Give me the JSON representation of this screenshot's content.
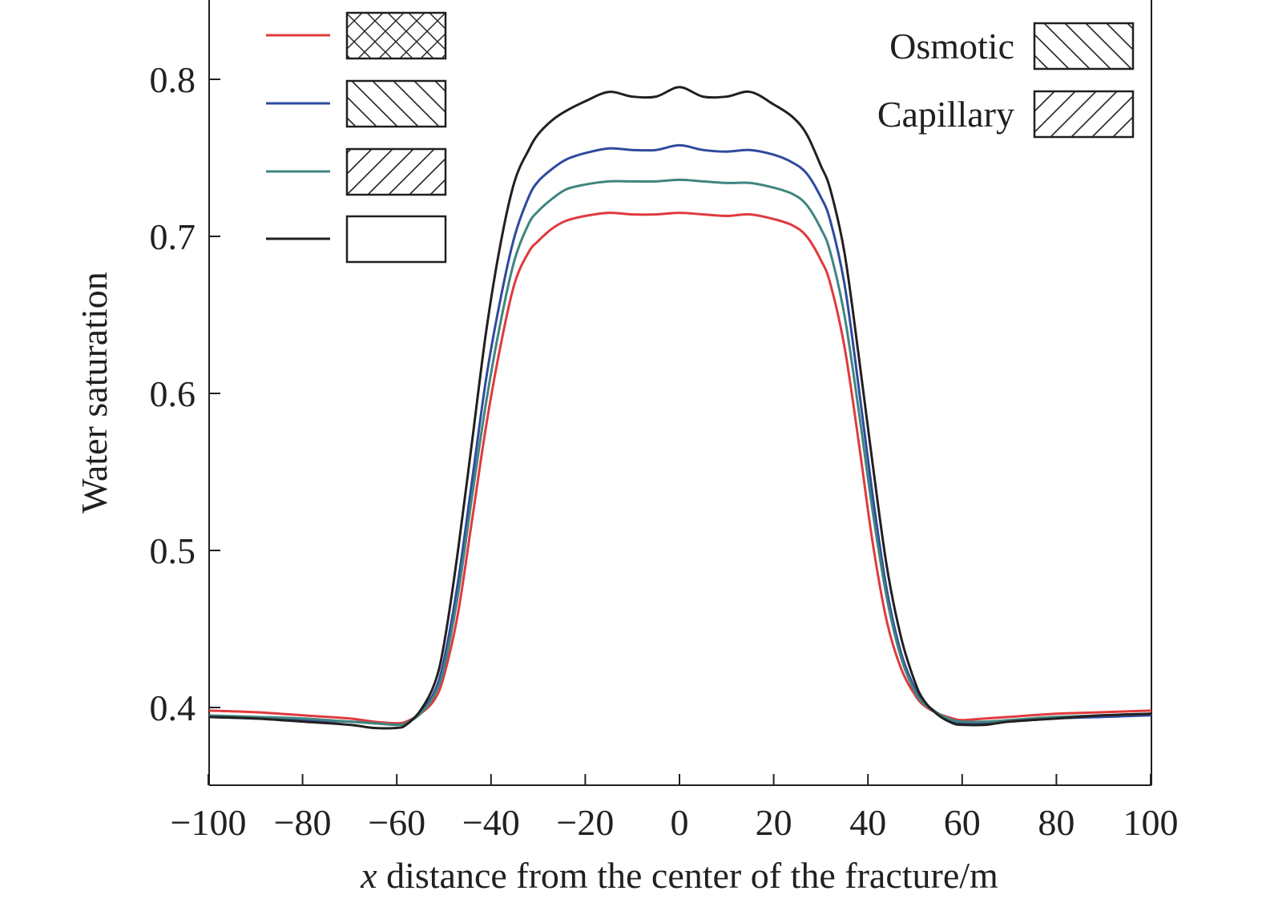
{
  "chart_data": {
    "type": "line",
    "title": "",
    "xlabel_var": "x",
    "xlabel": " distance from the center of the fracture/m",
    "ylabel": "Water saturation",
    "xlim": [
      -100,
      100
    ],
    "ylim": [
      0.35,
      0.85
    ],
    "xticks": [
      -100,
      -80,
      -60,
      -40,
      -20,
      0,
      20,
      40,
      60,
      80,
      100
    ],
    "yticks": [
      0.4,
      0.5,
      0.6,
      0.7,
      0.8
    ],
    "xtick_labels": [
      "−100",
      "−80",
      "−60",
      "−40",
      "−20",
      "0",
      "20",
      "40",
      "60",
      "80",
      "100"
    ],
    "ytick_labels": [
      "0.4",
      "0.5",
      "0.6",
      "0.7",
      "0.8"
    ],
    "grid": false,
    "legend": {
      "placement": "top-left",
      "entries": [
        {
          "color": "#e03a3e",
          "pattern": "crosshatch"
        },
        {
          "color": "#2e4a9e",
          "pattern": "back-diagonal"
        },
        {
          "color": "#3f8580",
          "pattern": "forward-diagonal"
        },
        {
          "color": "#231f20",
          "pattern": "none"
        }
      ]
    },
    "pattern_key": {
      "placement": "top-right",
      "entries": [
        {
          "label": "Osmotic",
          "pattern": "back-diagonal"
        },
        {
          "label": "Capillary",
          "pattern": "forward-diagonal"
        }
      ]
    },
    "x": [
      -100,
      -90,
      -80,
      -70,
      -65,
      -60,
      -58,
      -55,
      -52,
      -50,
      -47,
      -44,
      -41,
      -38,
      -35,
      -32,
      -30,
      -27,
      -24,
      -20,
      -15,
      -10,
      -5,
      0,
      5,
      10,
      15,
      20,
      24,
      27,
      30,
      32,
      35,
      38,
      41,
      44,
      47,
      50,
      52,
      55,
      58,
      60,
      65,
      70,
      80,
      90,
      100
    ],
    "series": [
      {
        "color": "#e03a3e",
        "values": [
          0.398,
          0.397,
          0.395,
          0.393,
          0.391,
          0.39,
          0.391,
          0.396,
          0.405,
          0.42,
          0.46,
          0.52,
          0.58,
          0.63,
          0.67,
          0.69,
          0.697,
          0.705,
          0.71,
          0.713,
          0.715,
          0.714,
          0.714,
          0.715,
          0.714,
          0.713,
          0.714,
          0.711,
          0.707,
          0.7,
          0.685,
          0.67,
          0.63,
          0.57,
          0.505,
          0.455,
          0.425,
          0.408,
          0.401,
          0.396,
          0.393,
          0.392,
          0.393,
          0.394,
          0.396,
          0.397,
          0.398
        ]
      },
      {
        "color": "#2e4a9e",
        "values": [
          0.394,
          0.393,
          0.392,
          0.391,
          0.39,
          0.389,
          0.39,
          0.397,
          0.41,
          0.43,
          0.48,
          0.545,
          0.61,
          0.66,
          0.7,
          0.725,
          0.735,
          0.743,
          0.749,
          0.753,
          0.756,
          0.755,
          0.755,
          0.758,
          0.755,
          0.754,
          0.755,
          0.752,
          0.747,
          0.74,
          0.725,
          0.71,
          0.67,
          0.605,
          0.535,
          0.475,
          0.435,
          0.412,
          0.403,
          0.396,
          0.391,
          0.39,
          0.39,
          0.391,
          0.393,
          0.394,
          0.395
        ]
      },
      {
        "color": "#3f8580",
        "values": [
          0.395,
          0.394,
          0.393,
          0.391,
          0.39,
          0.389,
          0.39,
          0.396,
          0.408,
          0.425,
          0.472,
          0.535,
          0.595,
          0.645,
          0.685,
          0.708,
          0.716,
          0.724,
          0.73,
          0.733,
          0.735,
          0.735,
          0.735,
          0.736,
          0.735,
          0.734,
          0.734,
          0.731,
          0.727,
          0.72,
          0.705,
          0.69,
          0.65,
          0.59,
          0.525,
          0.47,
          0.432,
          0.41,
          0.402,
          0.396,
          0.392,
          0.391,
          0.391,
          0.392,
          0.394,
          0.395,
          0.396
        ]
      },
      {
        "color": "#231f20",
        "values": [
          0.394,
          0.393,
          0.391,
          0.389,
          0.387,
          0.387,
          0.389,
          0.398,
          0.415,
          0.44,
          0.5,
          0.57,
          0.64,
          0.695,
          0.735,
          0.755,
          0.765,
          0.774,
          0.78,
          0.786,
          0.792,
          0.789,
          0.789,
          0.795,
          0.789,
          0.789,
          0.792,
          0.784,
          0.776,
          0.765,
          0.745,
          0.73,
          0.69,
          0.625,
          0.555,
          0.49,
          0.445,
          0.416,
          0.404,
          0.395,
          0.39,
          0.389,
          0.389,
          0.391,
          0.393,
          0.395,
          0.396
        ]
      }
    ]
  }
}
